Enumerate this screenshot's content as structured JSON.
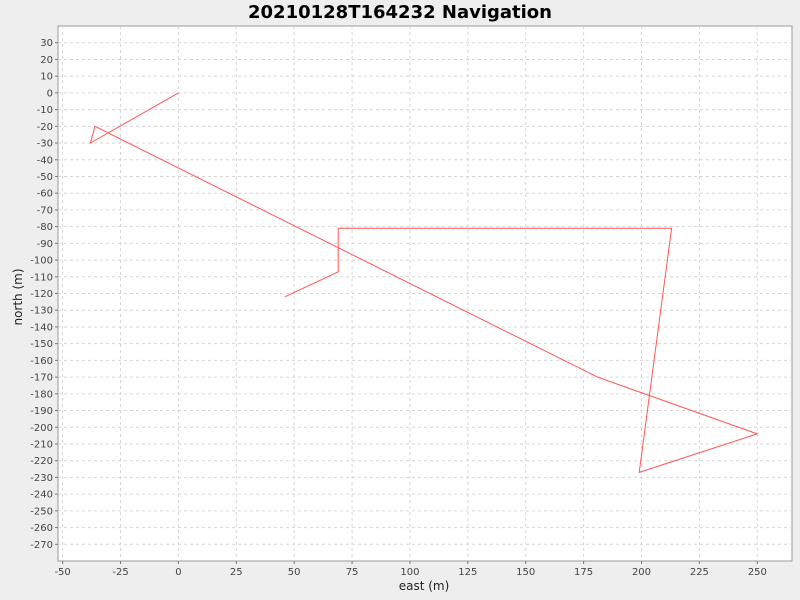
{
  "chart_data": {
    "type": "line",
    "title": "20210128T164232 Navigation",
    "xlabel": "east (m)",
    "ylabel": "north (m)",
    "xlim": [
      -52,
      265
    ],
    "ylim": [
      -280,
      40
    ],
    "xticks": [
      -50,
      -25,
      0,
      25,
      50,
      75,
      100,
      125,
      150,
      175,
      200,
      225,
      250
    ],
    "yticks": [
      30,
      20,
      10,
      0,
      -10,
      -20,
      -30,
      -40,
      -50,
      -60,
      -70,
      -80,
      -90,
      -100,
      -110,
      -120,
      -130,
      -140,
      -150,
      -160,
      -170,
      -180,
      -190,
      -200,
      -210,
      -220,
      -230,
      -240,
      -250,
      -260,
      -270
    ],
    "grid": true,
    "line_color": "#ff5555",
    "series": [
      {
        "x": [
          0,
          -38,
          -36,
          181,
          250,
          199,
          213,
          69,
          69,
          46
        ],
        "y": [
          0,
          -30,
          -20,
          -170,
          -204,
          -227,
          -81,
          -81,
          -107,
          -122
        ]
      }
    ]
  }
}
